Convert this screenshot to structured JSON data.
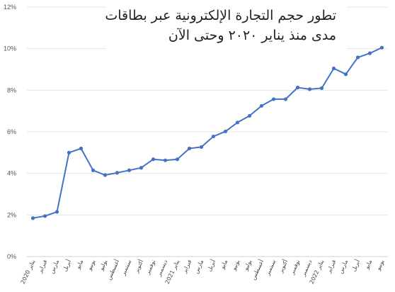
{
  "chart_data": {
    "type": "line",
    "title_lines": [
      "تطور حجم التجارة الإلكترونية عبر بطاقات",
      "مدى منذ يناير ٢٠٢٠ وحتى الآن"
    ],
    "x_labels": [
      "يناير 2020",
      "فبراير",
      "مارس",
      "أبريل",
      "مايو",
      "يونيو",
      "يوليو",
      "أغسطس",
      "سبتمبر",
      "أكتوبر",
      "نوفمبر",
      "ديسمبر",
      "يناير 2021",
      "فبراير",
      "مارس",
      "أبريل",
      "مايو",
      "يونيو",
      "يوليو",
      "أغسطس",
      "سبتمبر",
      "أكتوبر",
      "نوفمبر",
      "ديسمبر",
      "يناير 2022",
      "فبراير",
      "مارس",
      "أبريل",
      "مايو",
      "يونيو"
    ],
    "y_tick_labels": [
      "0%",
      "2%",
      "4%",
      "6%",
      "8%",
      "10%",
      "12%"
    ],
    "ylim": [
      0,
      12
    ],
    "series": [
      {
        "color": "#4472c4",
        "values": [
          1.85,
          1.95,
          2.15,
          5.0,
          5.2,
          4.15,
          3.92,
          4.03,
          4.15,
          4.27,
          4.68,
          4.63,
          4.68,
          5.2,
          5.27,
          5.78,
          6.02,
          6.45,
          6.77,
          7.25,
          7.57,
          7.57,
          8.13,
          8.05,
          8.1,
          9.05,
          8.77,
          9.58,
          9.78,
          10.05
        ]
      }
    ],
    "grid": true
  }
}
